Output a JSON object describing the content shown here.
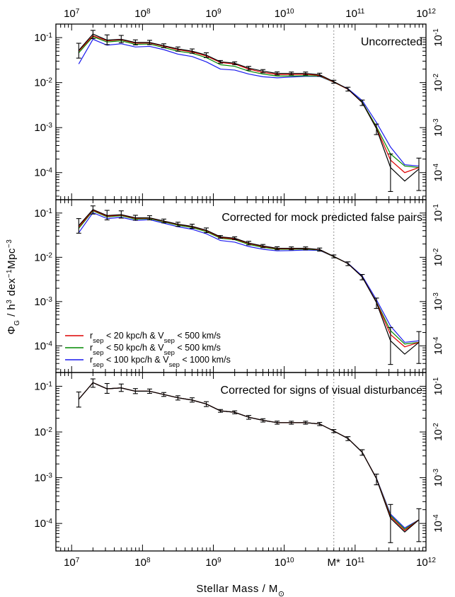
{
  "chart_data": {
    "type": "line",
    "xscale": "log",
    "yscale": "log",
    "xlim": [
      6000000,
      1000000000000
    ],
    "ylim": [
      2.5e-05,
      0.2
    ],
    "xlabel": {
      "main": "Stellar Mass / M",
      "sub": "⊙"
    },
    "ylabel": {
      "phi": "Φ",
      "phi_sub": "G",
      "mid": " / h",
      "sup1": "3",
      "mid2": " dex",
      "sup2": "−1",
      "mid3": "Mpc",
      "sup3": "−3"
    },
    "x_ticks": [
      {
        "value": 10000000,
        "base": "10",
        "exp": "7"
      },
      {
        "value": 100000000,
        "base": "10",
        "exp": "8"
      },
      {
        "value": 1000000000,
        "base": "10",
        "exp": "9"
      },
      {
        "value": 10000000000,
        "base": "10",
        "exp": "10"
      },
      {
        "value": 100000000000,
        "base": "10",
        "exp": "11"
      },
      {
        "value": 1000000000000,
        "base": "10",
        "exp": "12"
      }
    ],
    "y_ticks": [
      {
        "value": 0.1,
        "base": "10",
        "exp": "-1"
      },
      {
        "value": 0.01,
        "base": "10",
        "exp": "-2"
      },
      {
        "value": 0.001,
        "base": "10",
        "exp": "-3"
      },
      {
        "value": 0.0001,
        "base": "10",
        "exp": "-4"
      }
    ],
    "mstar": {
      "value": 50000000000,
      "label": "M*"
    },
    "colors": {
      "red": "#dd0000",
      "green": "#008800",
      "blue": "#1a1aee",
      "black": "#000000",
      "mstar_line": "#888888"
    },
    "x": [
      12600000,
      20000000,
      31600000,
      50100000,
      79400000,
      126000000,
      200000000,
      316000000,
      501000000,
      794000000,
      1260000000,
      2000000000,
      3160000000,
      5010000000,
      7940000000,
      12600000000,
      20000000000,
      31600000000,
      50100000000,
      79400000000,
      126000000000,
      200000000000,
      316000000000,
      501000000000,
      794000000000
    ],
    "legend": [
      {
        "color": "red",
        "label": {
          "a": "r",
          "a_sub": "sep",
          "b": " < 20 kpc/h & V",
          "b_sub": "sep",
          "c": " < 500 km/s"
        }
      },
      {
        "color": "green",
        "label": {
          "a": "r",
          "a_sub": "sep",
          "b": " < 50 kpc/h & V",
          "b_sub": "sep",
          "c": " < 500 km/s"
        }
      },
      {
        "color": "blue",
        "label": {
          "a": "r",
          "a_sub": "sep",
          "b": " < 100 kpc/h & V",
          "b_sub": "sep",
          "c": " < 1000 km/s"
        }
      }
    ],
    "panels": [
      {
        "title": "Uncorrected",
        "series": [
          {
            "color": "black",
            "values": [
              0.052,
              0.12,
              0.088,
              0.092,
              0.078,
              0.078,
              0.066,
              0.056,
              0.05,
              0.041,
              0.029,
              0.027,
              0.021,
              0.018,
              0.016,
              0.016,
              0.016,
              0.015,
              0.0105,
              0.0072,
              0.0036,
              0.00095,
              0.00013,
              6.5e-05,
              0.00012
            ]
          },
          {
            "color": "red",
            "values": [
              0.05,
              0.11,
              0.085,
              0.09,
              0.075,
              0.076,
              0.064,
              0.054,
              0.048,
              0.039,
              0.028,
              0.026,
              0.02,
              0.0168,
              0.0152,
              0.0152,
              0.0153,
              0.0145,
              0.0103,
              0.0071,
              0.0036,
              0.00098,
              0.00019,
              0.0001,
              0.00013
            ]
          },
          {
            "color": "green",
            "values": [
              0.046,
              0.105,
              0.08,
              0.085,
              0.071,
              0.072,
              0.06,
              0.05,
              0.045,
              0.036,
              0.025,
              0.023,
              0.018,
              0.0155,
              0.014,
              0.014,
              0.0142,
              0.014,
              0.0102,
              0.0071,
              0.0037,
              0.00105,
              0.00026,
              0.00014,
              0.00013
            ]
          },
          {
            "color": "blue",
            "values": [
              0.026,
              0.092,
              0.068,
              0.073,
              0.062,
              0.064,
              0.054,
              0.043,
              0.038,
              0.029,
              0.02,
              0.019,
              0.0155,
              0.0135,
              0.0128,
              0.0133,
              0.0138,
              0.0138,
              0.0102,
              0.0073,
              0.004,
              0.0013,
              0.00037,
              0.00015,
              0.00014
            ]
          }
        ],
        "errors": [
          [
            0.035,
            0.075
          ],
          [
            0.095,
            0.145
          ],
          [
            0.07,
            0.115
          ],
          [
            0.077,
            0.112
          ],
          [
            0.069,
            0.089
          ],
          [
            0.07,
            0.087
          ],
          [
            0.06,
            0.073
          ],
          [
            0.05,
            0.062
          ],
          [
            0.045,
            0.056
          ],
          [
            0.036,
            0.046
          ],
          [
            0.027,
            0.031
          ],
          [
            0.025,
            0.029
          ],
          [
            0.019,
            0.023
          ],
          [
            0.0165,
            0.0195
          ],
          [
            0.0148,
            0.0173
          ],
          [
            0.0148,
            0.0172
          ],
          [
            0.0148,
            0.0172
          ],
          [
            0.0138,
            0.0162
          ],
          [
            0.0097,
            0.0113
          ],
          [
            0.0065,
            0.0079
          ],
          [
            0.0031,
            0.0041
          ],
          [
            0.0007,
            0.0012
          ],
          [
            3.8e-05,
            0.00026
          ],
          [
            null,
            null
          ],
          [
            4e-05,
            0.00021
          ]
        ]
      },
      {
        "title": "Corrected for mock predicted false pairs",
        "series": [
          {
            "color": "black",
            "values": [
              0.052,
              0.12,
              0.088,
              0.092,
              0.078,
              0.078,
              0.066,
              0.056,
              0.05,
              0.041,
              0.029,
              0.027,
              0.021,
              0.018,
              0.016,
              0.016,
              0.016,
              0.015,
              0.0105,
              0.0072,
              0.0036,
              0.00095,
              0.00013,
              6.5e-05,
              0.00012
            ]
          },
          {
            "color": "red",
            "values": [
              0.048,
              0.116,
              0.085,
              0.09,
              0.076,
              0.077,
              0.065,
              0.055,
              0.049,
              0.04,
              0.028,
              0.026,
              0.0205,
              0.0175,
              0.0157,
              0.0157,
              0.0158,
              0.0148,
              0.0104,
              0.0072,
              0.0036,
              0.00097,
              0.00018,
              9.5e-05,
              0.00012
            ]
          },
          {
            "color": "green",
            "values": [
              0.045,
              0.112,
              0.082,
              0.087,
              0.073,
              0.075,
              0.063,
              0.053,
              0.047,
              0.038,
              0.027,
              0.025,
              0.0195,
              0.0168,
              0.0152,
              0.0152,
              0.0153,
              0.0146,
              0.0103,
              0.0072,
              0.0036,
              0.00099,
              0.00022,
              0.00011,
              0.00012
            ]
          },
          {
            "color": "blue",
            "values": [
              0.036,
              0.102,
              0.075,
              0.08,
              0.068,
              0.071,
              0.059,
              0.049,
              0.043,
              0.034,
              0.024,
              0.022,
              0.0175,
              0.0152,
              0.014,
              0.0142,
              0.0146,
              0.0143,
              0.0103,
              0.0073,
              0.0038,
              0.0011,
              0.00028,
              0.00012,
              0.00013
            ]
          }
        ],
        "errors": [
          [
            0.035,
            0.075
          ],
          [
            0.095,
            0.145
          ],
          [
            0.07,
            0.115
          ],
          [
            0.077,
            0.112
          ],
          [
            0.069,
            0.089
          ],
          [
            0.07,
            0.087
          ],
          [
            0.06,
            0.073
          ],
          [
            0.05,
            0.062
          ],
          [
            0.045,
            0.056
          ],
          [
            0.036,
            0.046
          ],
          [
            0.027,
            0.031
          ],
          [
            0.025,
            0.029
          ],
          [
            0.019,
            0.023
          ],
          [
            0.0165,
            0.0195
          ],
          [
            0.0148,
            0.0173
          ],
          [
            0.0148,
            0.0172
          ],
          [
            0.0148,
            0.0172
          ],
          [
            0.0138,
            0.0162
          ],
          [
            0.0097,
            0.0113
          ],
          [
            0.0065,
            0.0079
          ],
          [
            0.0031,
            0.0041
          ],
          [
            0.0007,
            0.0012
          ],
          [
            3.8e-05,
            0.00026
          ],
          [
            null,
            null
          ],
          [
            4e-05,
            0.00021
          ]
        ]
      },
      {
        "title": "Corrected for signs of visual disturbance",
        "series": [
          {
            "color": "black",
            "values": [
              0.052,
              0.12,
              0.088,
              0.092,
              0.078,
              0.078,
              0.066,
              0.056,
              0.05,
              0.041,
              0.029,
              0.027,
              0.021,
              0.018,
              0.016,
              0.016,
              0.016,
              0.015,
              0.0105,
              0.0072,
              0.0036,
              0.00095,
              0.00013,
              6.5e-05,
              0.00012
            ]
          },
          {
            "color": "red",
            "values": [
              0.052,
              0.12,
              0.088,
              0.092,
              0.078,
              0.078,
              0.066,
              0.056,
              0.05,
              0.041,
              0.029,
              0.027,
              0.021,
              0.018,
              0.016,
              0.016,
              0.016,
              0.015,
              0.0105,
              0.0072,
              0.0036,
              0.00096,
              0.00014,
              7e-05,
              0.00012
            ]
          },
          {
            "color": "green",
            "values": [
              0.052,
              0.12,
              0.088,
              0.092,
              0.078,
              0.078,
              0.066,
              0.056,
              0.05,
              0.041,
              0.029,
              0.027,
              0.021,
              0.018,
              0.016,
              0.016,
              0.016,
              0.015,
              0.0105,
              0.0072,
              0.0036,
              0.00097,
              0.00015,
              7.5e-05,
              0.00012
            ]
          },
          {
            "color": "blue",
            "values": [
              0.052,
              0.12,
              0.088,
              0.092,
              0.078,
              0.078,
              0.066,
              0.056,
              0.05,
              0.041,
              0.029,
              0.027,
              0.021,
              0.018,
              0.016,
              0.016,
              0.016,
              0.015,
              0.0105,
              0.0072,
              0.0036,
              0.00098,
              0.00016,
              8e-05,
              0.00012
            ]
          }
        ],
        "errors": [
          [
            0.035,
            0.075
          ],
          [
            0.095,
            0.145
          ],
          [
            0.07,
            0.115
          ],
          [
            0.077,
            0.112
          ],
          [
            0.069,
            0.089
          ],
          [
            0.07,
            0.087
          ],
          [
            0.06,
            0.073
          ],
          [
            0.05,
            0.062
          ],
          [
            0.045,
            0.056
          ],
          [
            0.036,
            0.046
          ],
          [
            0.027,
            0.031
          ],
          [
            0.025,
            0.029
          ],
          [
            0.019,
            0.023
          ],
          [
            0.0165,
            0.0195
          ],
          [
            0.0148,
            0.0173
          ],
          [
            0.0148,
            0.0172
          ],
          [
            0.0148,
            0.0172
          ],
          [
            0.0138,
            0.0162
          ],
          [
            0.0097,
            0.0113
          ],
          [
            0.0065,
            0.0079
          ],
          [
            0.0031,
            0.0041
          ],
          [
            0.0007,
            0.0012
          ],
          [
            3.8e-05,
            0.00026
          ],
          [
            null,
            null
          ],
          [
            4e-05,
            0.00021
          ]
        ]
      }
    ]
  }
}
